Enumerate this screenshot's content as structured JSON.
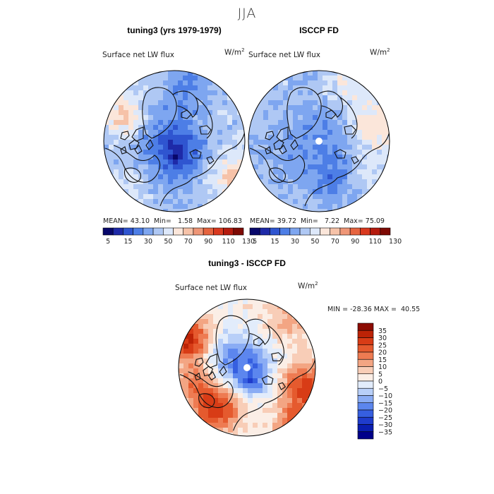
{
  "figure": {
    "title": "JJA"
  },
  "colors": {
    "abs_scale": [
      "#08086b",
      "#1e2aa8",
      "#2f55d0",
      "#4d7ee6",
      "#7ea6f0",
      "#afc8f4",
      "#dde8fa",
      "#fbe6da",
      "#f6c2a8",
      "#ef9677",
      "#e6643f",
      "#d9391f",
      "#b51b0e",
      "#7e0a04"
    ],
    "diff_scale": [
      "#00008a",
      "#0a1eb0",
      "#1f3ccc",
      "#365fe0",
      "#5c86ee",
      "#8aacf4",
      "#b8cff8",
      "#e2ecfb",
      "#fbeee6",
      "#f8cdb7",
      "#f3a583",
      "#ee7b52",
      "#e55a2e",
      "#d83c16",
      "#bc2306",
      "#8c0c02"
    ],
    "land_outline": "#111111"
  },
  "chart_data": [
    {
      "type": "heatmap",
      "title": "tuning3 (yrs 1979-1979)",
      "variable": "Surface net LW flux",
      "units": "W/m",
      "units_exp": "2",
      "stats": {
        "mean_label": "MEAN=",
        "mean": "43.10",
        "min_label": "Min=",
        "min": "1.58",
        "max_label": "Max=",
        "max": "106.83"
      },
      "colorbar": {
        "orientation": "horizontal",
        "levels": [
          5,
          10,
          15,
          20,
          30,
          40,
          50,
          60,
          70,
          80,
          90,
          100,
          110,
          120,
          130
        ],
        "tick_labels": [
          "5",
          "15",
          "30",
          "50",
          "70",
          "90",
          "110",
          "130"
        ]
      }
    },
    {
      "type": "heatmap",
      "title": "ISCCP FD",
      "variable": "Surface net LW flux",
      "units": "W/m",
      "units_exp": "2",
      "stats": {
        "mean_label": "MEAN=",
        "mean": "39.72",
        "min_label": "Min=",
        "min": "7.22",
        "max_label": "Max=",
        "max": "75.09"
      },
      "colorbar": {
        "orientation": "horizontal",
        "levels": [
          5,
          10,
          15,
          20,
          30,
          40,
          50,
          60,
          70,
          80,
          90,
          100,
          110,
          120,
          130
        ],
        "tick_labels": [
          "5",
          "15",
          "30",
          "50",
          "70",
          "90",
          "110",
          "130"
        ]
      }
    },
    {
      "type": "heatmap",
      "title": "tuning3 - ISCCP FD",
      "variable": "Surface net LW flux",
      "units": "W/m",
      "units_exp": "2",
      "stats": {
        "min_label": "MIN =",
        "min": "-28.36",
        "max_label": "MAX =",
        "max": "40.55"
      },
      "colorbar": {
        "orientation": "vertical",
        "tick_labels": [
          "35",
          "30",
          "25",
          "20",
          "15",
          "10",
          "5",
          "0",
          "−5",
          "−10",
          "−15",
          "−20",
          "−25",
          "−30",
          "−35"
        ]
      }
    }
  ]
}
